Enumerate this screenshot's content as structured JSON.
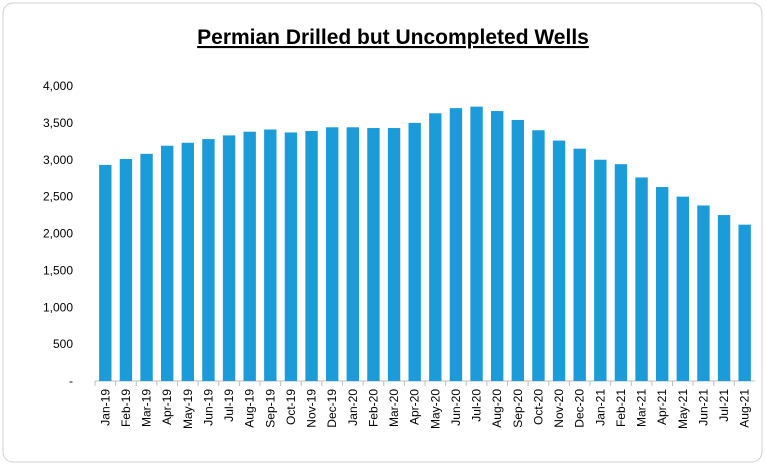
{
  "chart_data": {
    "type": "bar",
    "title": "Permian Drilled but Uncompleted Wells",
    "categories": [
      "Jan-19",
      "Feb-19",
      "Mar-19",
      "Apr-19",
      "May-19",
      "Jun-19",
      "Jul-19",
      "Aug-19",
      "Sep-19",
      "Oct-19",
      "Nov-19",
      "Dec-19",
      "Jan-20",
      "Feb-20",
      "Mar-20",
      "Apr-20",
      "May-20",
      "Jun-20",
      "Jul-20",
      "Aug-20",
      "Sep-20",
      "Oct-20",
      "Nov-20",
      "Dec-20",
      "Jan-21",
      "Feb-21",
      "Mar-21",
      "Apr-21",
      "May-21",
      "Jun-21",
      "Jul-21",
      "Aug-21"
    ],
    "values": [
      2930,
      3010,
      3080,
      3190,
      3230,
      3280,
      3330,
      3380,
      3410,
      3370,
      3390,
      3440,
      3440,
      3430,
      3430,
      3500,
      3630,
      3700,
      3720,
      3660,
      3540,
      3400,
      3260,
      3150,
      3000,
      2940,
      2760,
      2630,
      2500,
      2380,
      2250,
      2120
    ],
    "color": "#1b9bd7",
    "ylim": [
      0,
      4000
    ],
    "yticks": [
      {
        "value": 0,
        "label": "-"
      },
      500,
      {
        "value": 1000,
        "label": "1,000"
      },
      {
        "value": 1500,
        "label": "1,500"
      },
      {
        "value": 2000,
        "label": "2,000"
      },
      {
        "value": 2500,
        "label": "2,500"
      },
      {
        "value": 3000,
        "label": "3,000"
      },
      {
        "value": 3500,
        "label": "3,500"
      },
      {
        "value": 4000,
        "label": "4,000"
      }
    ],
    "grid": false
  }
}
